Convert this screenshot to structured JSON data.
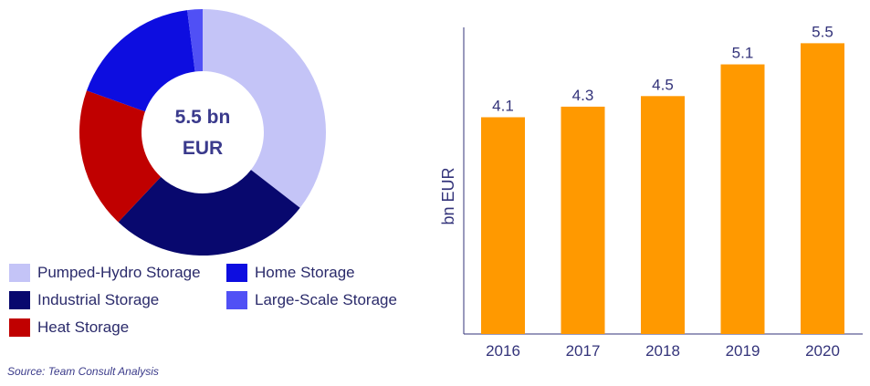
{
  "chart_data": [
    {
      "type": "pie",
      "donut": true,
      "center_label": [
        "5.5 bn",
        "EUR"
      ],
      "categories": [
        "Pumped-Hydro Storage",
        "Industrial Storage",
        "Heat Storage",
        "Home Storage",
        "Large-Scale Storage"
      ],
      "values": [
        35.5,
        26.5,
        18.5,
        17.5,
        2.0
      ],
      "colors": [
        "#c4c4f7",
        "#08086e",
        "#c00000",
        "#0d0de0",
        "#5050f5"
      ],
      "legend": [
        {
          "label": "Pumped-Hydro Storage",
          "color": "#c4c4f7"
        },
        {
          "label": "Home Storage",
          "color": "#0d0de0"
        },
        {
          "label": "Industrial Storage",
          "color": "#08086e"
        },
        {
          "label": "Large-Scale Storage",
          "color": "#5050f5"
        },
        {
          "label": "Heat Storage",
          "color": "#c00000"
        }
      ],
      "legend_placement": "bottom"
    },
    {
      "type": "bar",
      "categories": [
        "2016",
        "2017",
        "2018",
        "2019",
        "2020"
      ],
      "values": [
        4.1,
        4.3,
        4.5,
        5.1,
        5.5
      ],
      "data_labels": [
        "4.1",
        "4.3",
        "4.5",
        "5.1",
        "5.5"
      ],
      "ylabel": "bn EUR",
      "xlabel": "",
      "ylim": [
        0,
        5.8
      ],
      "color": "#ff9900",
      "grid": false
    }
  ],
  "source": "Source: Team Consult Analysis"
}
